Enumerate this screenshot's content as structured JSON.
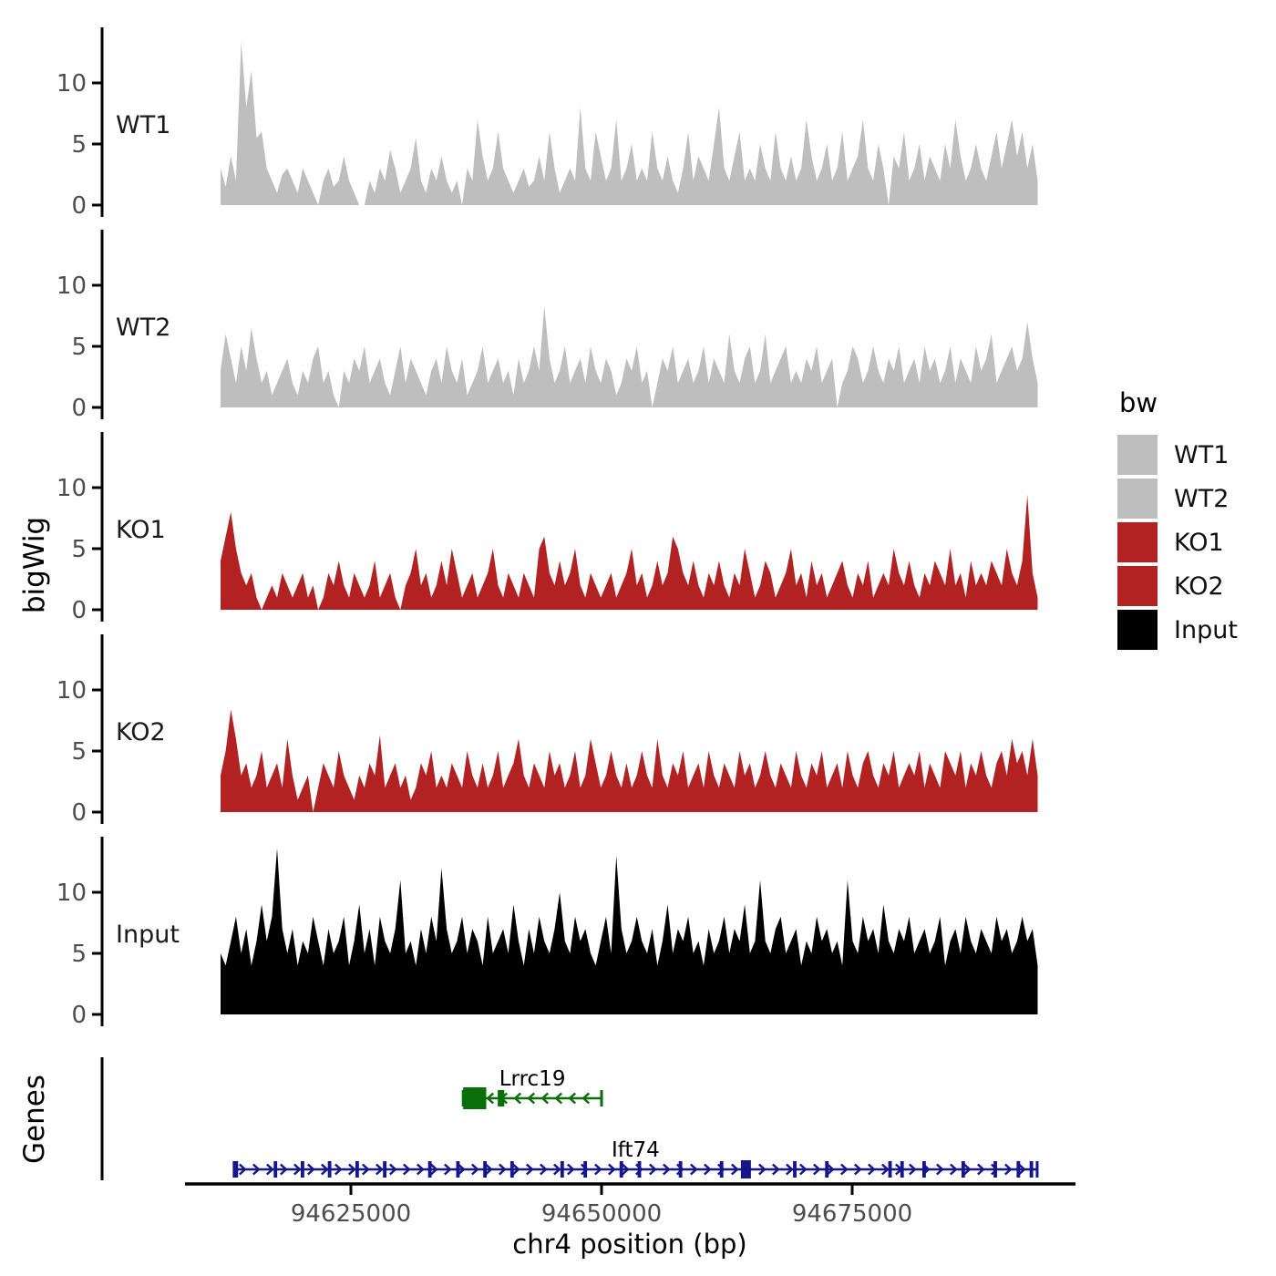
{
  "labels": {
    "y_axis_tracks": "bigWig",
    "y_axis_genes": "Genes",
    "x_axis_title": "chr4 position (bp)",
    "legend_title": "bw"
  },
  "colors": {
    "wt_fill": "#BEBEBE",
    "ko_fill": "#B22222",
    "input_fill": "#000000",
    "gene_lrrc19": "#0A6E0A",
    "gene_ift74": "#16168C",
    "axis": "#000000",
    "tick_label": "#4D4D4D",
    "track_label": "#1A1A1A"
  },
  "legend": {
    "title": "bw",
    "items": [
      {
        "label": "WT1",
        "color": "#BEBEBE"
      },
      {
        "label": "WT2",
        "color": "#BEBEBE"
      },
      {
        "label": "KO1",
        "color": "#B22222"
      },
      {
        "label": "KO2",
        "color": "#B22222"
      },
      {
        "label": "Input",
        "color": "#000000"
      }
    ]
  },
  "chart_data": {
    "type": "area",
    "title": "",
    "xlabel": "chr4 position (bp)",
    "ylabel": "bigWig",
    "x_range_bp": [
      94612000,
      94693500
    ],
    "x_ticks": [
      {
        "bp": 94625000,
        "label": "94625000"
      },
      {
        "bp": 94650000,
        "label": "94650000"
      },
      {
        "bp": 94675000,
        "label": "94675000"
      }
    ],
    "y_ticks": [
      0,
      5,
      10
    ],
    "ylim": [
      0,
      14.5
    ],
    "grid": false,
    "legend_position": "right",
    "tracks": [
      {
        "name": "WT1",
        "color": "#BEBEBE",
        "values": [
          3,
          1.5,
          4,
          2,
          13.4,
          8,
          11,
          5.5,
          6,
          3,
          2,
          1,
          2.5,
          3,
          2,
          1,
          3,
          2,
          1,
          0,
          2,
          3,
          1.5,
          2,
          4,
          2,
          1,
          0,
          0,
          2,
          1,
          3,
          2,
          4.5,
          3,
          1,
          2,
          3,
          5.5,
          2,
          1,
          3,
          2,
          4,
          2,
          1,
          2,
          0,
          3,
          2,
          7,
          4,
          2,
          3,
          6,
          3,
          2,
          1,
          2,
          3,
          1.5,
          2,
          4,
          2,
          6,
          3,
          1,
          2,
          3,
          2,
          8,
          3,
          2,
          6,
          4,
          2,
          3,
          7,
          2,
          3,
          5,
          2,
          3,
          2,
          6,
          3,
          2,
          4,
          2,
          1,
          3,
          6,
          2,
          4,
          3,
          2,
          5,
          8,
          3,
          2,
          4,
          6,
          2,
          3,
          2,
          5,
          3,
          2,
          6,
          3,
          2,
          4,
          2,
          3,
          7,
          4,
          2,
          3,
          5,
          2,
          3,
          6,
          2,
          3,
          4,
          7,
          3,
          2,
          5,
          3,
          0,
          4,
          3,
          6,
          2,
          3,
          5,
          2,
          4,
          3,
          2,
          5,
          3,
          7,
          4,
          2,
          3,
          5,
          3,
          2,
          4,
          6,
          3,
          5,
          7,
          4,
          6,
          3,
          5,
          2
        ]
      },
      {
        "name": "WT2",
        "color": "#BEBEBE",
        "values": [
          3,
          6,
          4,
          2,
          5,
          3,
          6.5,
          4,
          2,
          3,
          1,
          2,
          3,
          4,
          2,
          1,
          3,
          2,
          4,
          5,
          2,
          3,
          1,
          0,
          3,
          2,
          4,
          3,
          5,
          2,
          3,
          4,
          2,
          1,
          3,
          5,
          2,
          4,
          3,
          2,
          1,
          3,
          4,
          2,
          5,
          3,
          2,
          4,
          1,
          2,
          3,
          5,
          2,
          3,
          4,
          2,
          3,
          1,
          4,
          2,
          3,
          5,
          3,
          8.3,
          4,
          2,
          3,
          5,
          2,
          3,
          4,
          2,
          5,
          3,
          2,
          4,
          3,
          1,
          2,
          4,
          3,
          5,
          2,
          3,
          0,
          2,
          4,
          3,
          5,
          2,
          3,
          4,
          2,
          3,
          5,
          2,
          4,
          3,
          2,
          6,
          3,
          2,
          4,
          5,
          2,
          3,
          6,
          2,
          3,
          4,
          5,
          2,
          3,
          2,
          4,
          3,
          5,
          2,
          3,
          4,
          0,
          2,
          3,
          5,
          4,
          2,
          3,
          5,
          3,
          2,
          4,
          3,
          5,
          2,
          3,
          4,
          2,
          5,
          3,
          4,
          2,
          3,
          5,
          2,
          4,
          3,
          2,
          5,
          3,
          4,
          6,
          2,
          3,
          4,
          5,
          3,
          4,
          7,
          4,
          2
        ]
      },
      {
        "name": "KO1",
        "color": "#B22222",
        "values": [
          4,
          6,
          8,
          5,
          3,
          2,
          3,
          1,
          0,
          1,
          2,
          1,
          3,
          2,
          1,
          2,
          3,
          1,
          2,
          0,
          1,
          3,
          2,
          4,
          2,
          1,
          3,
          2,
          1,
          2,
          4,
          1,
          2,
          3,
          1,
          0,
          2,
          3,
          5,
          2,
          3,
          1,
          2,
          4,
          2,
          5,
          3,
          1,
          2,
          3,
          1,
          2,
          3,
          5,
          2,
          1,
          3,
          2,
          1,
          3,
          2,
          1,
          5,
          6,
          3,
          2,
          4,
          2,
          3,
          5,
          2,
          1,
          3,
          2,
          1,
          2,
          3,
          1,
          2,
          3,
          5,
          2,
          3,
          1,
          2,
          4,
          2,
          3,
          6,
          5,
          3,
          2,
          4,
          2,
          1,
          3,
          2,
          4,
          2,
          1,
          3,
          2,
          5,
          3,
          1,
          2,
          4,
          3,
          1,
          2,
          3,
          5,
          2,
          3,
          1,
          4,
          2,
          3,
          1,
          2,
          3,
          4,
          2,
          1,
          3,
          2,
          4,
          1,
          2,
          3,
          2,
          5,
          3,
          2,
          4,
          2,
          1,
          3,
          2,
          4,
          3,
          2,
          5,
          2,
          3,
          1,
          4,
          2,
          3,
          2,
          4,
          3,
          2,
          5,
          3,
          2,
          4,
          9.4,
          3,
          1
        ]
      },
      {
        "name": "KO2",
        "color": "#B22222",
        "values": [
          3,
          5,
          8.4,
          6,
          3,
          4,
          2,
          3,
          5,
          2,
          3,
          4,
          2,
          6,
          3,
          1,
          2,
          3,
          0,
          2,
          4,
          3,
          2,
          5,
          3,
          2,
          1,
          3,
          2,
          4,
          3,
          6.3,
          2,
          3,
          4,
          2,
          3,
          1,
          2,
          4,
          3,
          5,
          2,
          3,
          2,
          4,
          3,
          2,
          5,
          3,
          2,
          4,
          2,
          3,
          5,
          2,
          3,
          4,
          6,
          3,
          2,
          4,
          3,
          2,
          5,
          3,
          4,
          2,
          3,
          5,
          2,
          3,
          6,
          4,
          2,
          3,
          5,
          3,
          2,
          4,
          2,
          3,
          5,
          3,
          2,
          6,
          3,
          2,
          4,
          3,
          5,
          2,
          3,
          4,
          2,
          5,
          3,
          2,
          4,
          3,
          2,
          5,
          3,
          4,
          2,
          3,
          5,
          3,
          2,
          4,
          3,
          2,
          5,
          3,
          2,
          4,
          3,
          5,
          2,
          3,
          4,
          2,
          5,
          3,
          2,
          4,
          5,
          3,
          2,
          4,
          3,
          5,
          2,
          3,
          4,
          3,
          5,
          2,
          4,
          3,
          2,
          5,
          4,
          3,
          5,
          2,
          4,
          3,
          5,
          3,
          2,
          4,
          5,
          3,
          6,
          4,
          5,
          3,
          6,
          3
        ]
      },
      {
        "name": "Input",
        "color": "#000000",
        "values": [
          5,
          4,
          6,
          8,
          5,
          7,
          4,
          6,
          9,
          6,
          8,
          13.6,
          7,
          5,
          7,
          4,
          6,
          5,
          8,
          6,
          4,
          7,
          5,
          6,
          8,
          4,
          6,
          9,
          5,
          7,
          4,
          8,
          6,
          5,
          7,
          11,
          5,
          6,
          4,
          7,
          5,
          8,
          6,
          12,
          7,
          5,
          6,
          8,
          5,
          7,
          6,
          4,
          8,
          5,
          6,
          7,
          5,
          9,
          6,
          4,
          7,
          5,
          8,
          6,
          5,
          7,
          10,
          6,
          5,
          8,
          6,
          7,
          5,
          4,
          6,
          8,
          5,
          13,
          7,
          5,
          6,
          8,
          6,
          5,
          7,
          4,
          6,
          9,
          5,
          7,
          6,
          8,
          5,
          6,
          4,
          7,
          5,
          6,
          8,
          5,
          7,
          6,
          9,
          5,
          6,
          11,
          6,
          5,
          7,
          8,
          5,
          6,
          7,
          4,
          6,
          5,
          8,
          6,
          7,
          5,
          6,
          4,
          11,
          6,
          5,
          8,
          6,
          7,
          5,
          9,
          6,
          5,
          7,
          6,
          8,
          5,
          6,
          7,
          5,
          6,
          8,
          4,
          6,
          7,
          5,
          8,
          6,
          5,
          7,
          6,
          5,
          8,
          6,
          7,
          5,
          6,
          8,
          6,
          7,
          4
        ]
      }
    ],
    "genes": [
      {
        "name": "Lrrc19",
        "strand": "-",
        "color": "#0A6E0A",
        "start": 94636200,
        "end": 94650000,
        "exons": [
          [
            94636200,
            94638500
          ],
          [
            94639650,
            94640300
          ]
        ]
      },
      {
        "name": "Ift74",
        "strand": "+",
        "color": "#16168C",
        "start": 94613350,
        "end": 94693450,
        "exons": [
          [
            94613350,
            94613750
          ],
          [
            94617300,
            94617650
          ],
          [
            94620000,
            94620350
          ],
          [
            94622700,
            94623050
          ],
          [
            94625450,
            94625800
          ],
          [
            94628200,
            94628550
          ],
          [
            94632700,
            94633050
          ],
          [
            94635500,
            94635850
          ],
          [
            94638200,
            94638550
          ],
          [
            94640900,
            94641250
          ],
          [
            94645900,
            94646250
          ],
          [
            94648200,
            94648550
          ],
          [
            94651800,
            94652150
          ],
          [
            94653600,
            94653950
          ],
          [
            94657700,
            94658050
          ],
          [
            94661800,
            94662150
          ],
          [
            94663900,
            94664900
          ],
          [
            94669100,
            94669450
          ],
          [
            94672300,
            94672650
          ],
          [
            94678600,
            94678950
          ],
          [
            94679800,
            94680150
          ],
          [
            94682000,
            94682350
          ],
          [
            94685900,
            94686250
          ],
          [
            94689100,
            94689450
          ],
          [
            94691400,
            94691750
          ],
          [
            94692700,
            94693050
          ]
        ]
      }
    ]
  }
}
